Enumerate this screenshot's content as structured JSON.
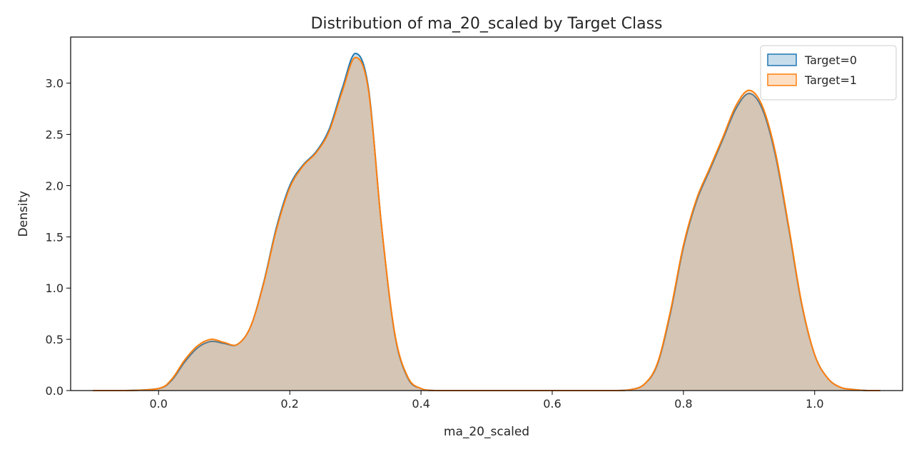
{
  "chart_data": {
    "type": "area",
    "title": "Distribution of ma_20_scaled by Target Class",
    "xlabel": "ma_20_scaled",
    "ylabel": "Density",
    "xlim": [
      -0.134,
      1.134
    ],
    "ylim": [
      0,
      3.45
    ],
    "xticks": [
      "0.0",
      "0.2",
      "0.4",
      "0.6",
      "0.8",
      "1.0"
    ],
    "yticks": [
      "0.0",
      "0.5",
      "1.0",
      "1.5",
      "2.0",
      "2.5",
      "3.0"
    ],
    "grid": false,
    "legend_position": "top-right",
    "series": [
      {
        "name": "Target=0",
        "color": "#1f77b4",
        "x": [
          -0.1,
          -0.05,
          0.0,
          0.02,
          0.04,
          0.06,
          0.08,
          0.1,
          0.12,
          0.14,
          0.16,
          0.18,
          0.2,
          0.22,
          0.24,
          0.26,
          0.28,
          0.3,
          0.32,
          0.34,
          0.36,
          0.38,
          0.4,
          0.42,
          0.45,
          0.5,
          0.55,
          0.6,
          0.65,
          0.7,
          0.72,
          0.74,
          0.76,
          0.78,
          0.8,
          0.82,
          0.84,
          0.86,
          0.88,
          0.9,
          0.92,
          0.94,
          0.96,
          0.98,
          1.0,
          1.02,
          1.04,
          1.06,
          1.08,
          1.1
        ],
        "y": [
          0.0,
          0.0,
          0.02,
          0.1,
          0.28,
          0.42,
          0.48,
          0.46,
          0.45,
          0.62,
          1.05,
          1.6,
          2.0,
          2.2,
          2.33,
          2.55,
          2.95,
          3.29,
          2.95,
          1.6,
          0.55,
          0.12,
          0.02,
          0.0,
          0.0,
          0.0,
          0.0,
          0.0,
          0.0,
          0.0,
          0.01,
          0.06,
          0.25,
          0.75,
          1.4,
          1.85,
          2.15,
          2.45,
          2.75,
          2.9,
          2.75,
          2.3,
          1.6,
          0.85,
          0.35,
          0.12,
          0.03,
          0.01,
          0.0,
          0.0
        ]
      },
      {
        "name": "Target=1",
        "color": "#ff7f0e",
        "x": [
          -0.1,
          -0.05,
          0.0,
          0.02,
          0.04,
          0.06,
          0.08,
          0.1,
          0.12,
          0.14,
          0.16,
          0.18,
          0.2,
          0.22,
          0.24,
          0.26,
          0.28,
          0.3,
          0.32,
          0.34,
          0.36,
          0.38,
          0.4,
          0.42,
          0.45,
          0.5,
          0.55,
          0.6,
          0.65,
          0.7,
          0.72,
          0.74,
          0.76,
          0.78,
          0.8,
          0.82,
          0.84,
          0.86,
          0.88,
          0.9,
          0.92,
          0.94,
          0.96,
          0.98,
          1.0,
          1.02,
          1.04,
          1.06,
          1.08,
          1.1
        ],
        "y": [
          0.0,
          0.0,
          0.02,
          0.11,
          0.3,
          0.44,
          0.5,
          0.47,
          0.45,
          0.62,
          1.04,
          1.58,
          1.98,
          2.19,
          2.32,
          2.53,
          2.92,
          3.25,
          2.93,
          1.6,
          0.56,
          0.13,
          0.02,
          0.0,
          0.0,
          0.0,
          0.0,
          0.0,
          0.0,
          0.0,
          0.01,
          0.06,
          0.26,
          0.77,
          1.42,
          1.87,
          2.17,
          2.47,
          2.78,
          2.93,
          2.78,
          2.33,
          1.62,
          0.86,
          0.35,
          0.12,
          0.03,
          0.01,
          0.0,
          0.0
        ]
      }
    ]
  }
}
